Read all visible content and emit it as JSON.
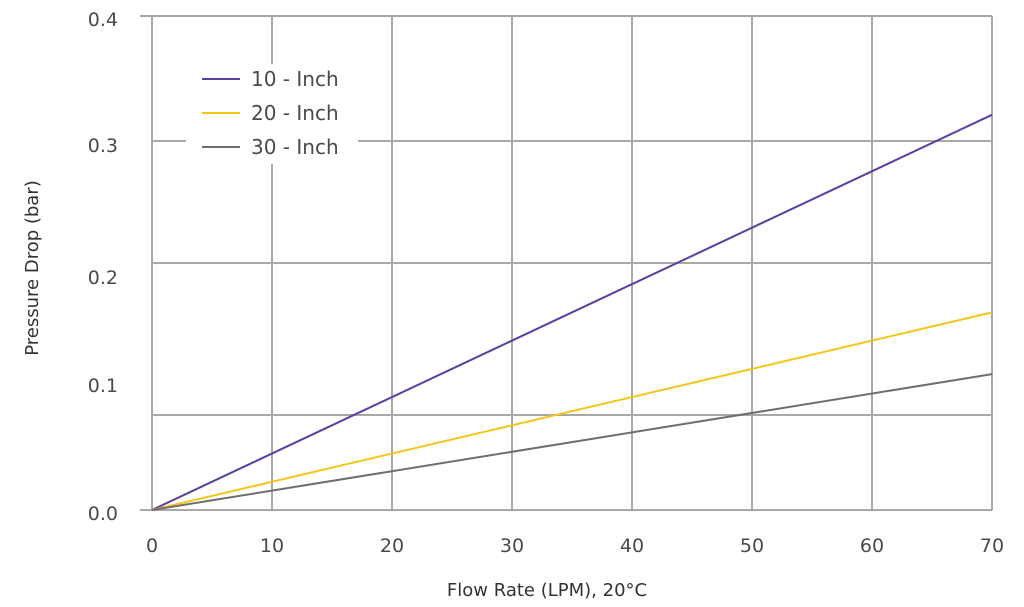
{
  "chart_data": {
    "type": "line",
    "title": "",
    "xlabel": "Flow Rate (LPM), 20°C",
    "ylabel": "Pressure Drop (bar)",
    "xlim": [
      0,
      70
    ],
    "ylim": [
      0.0,
      0.4
    ],
    "x_ticks": [
      0,
      10,
      20,
      30,
      40,
      50,
      60,
      70
    ],
    "x_tick_labels": [
      "0",
      "10",
      "20",
      "30",
      "40",
      "50",
      "60",
      "70"
    ],
    "y_ticks": [
      0.0,
      0.1,
      0.2,
      0.3,
      0.4
    ],
    "y_tick_labels": [
      "0.0",
      "0.1",
      "0.2",
      "0.3",
      "0.4"
    ],
    "grid": true,
    "legend_position": "top-left",
    "x": [
      0,
      70
    ],
    "series": [
      {
        "name": "10-Inch",
        "label": "10 - Inch",
        "color": "#5b3fa0",
        "values": [
          0.0,
          0.32
        ]
      },
      {
        "name": "20-Inch",
        "label": "20 - Inch",
        "color": "#f5c518",
        "values": [
          0.0,
          0.16
        ]
      },
      {
        "name": "30-Inch",
        "label": "30 - Inch",
        "color": "#6e6e6e",
        "values": [
          0.0,
          0.11
        ]
      }
    ]
  }
}
